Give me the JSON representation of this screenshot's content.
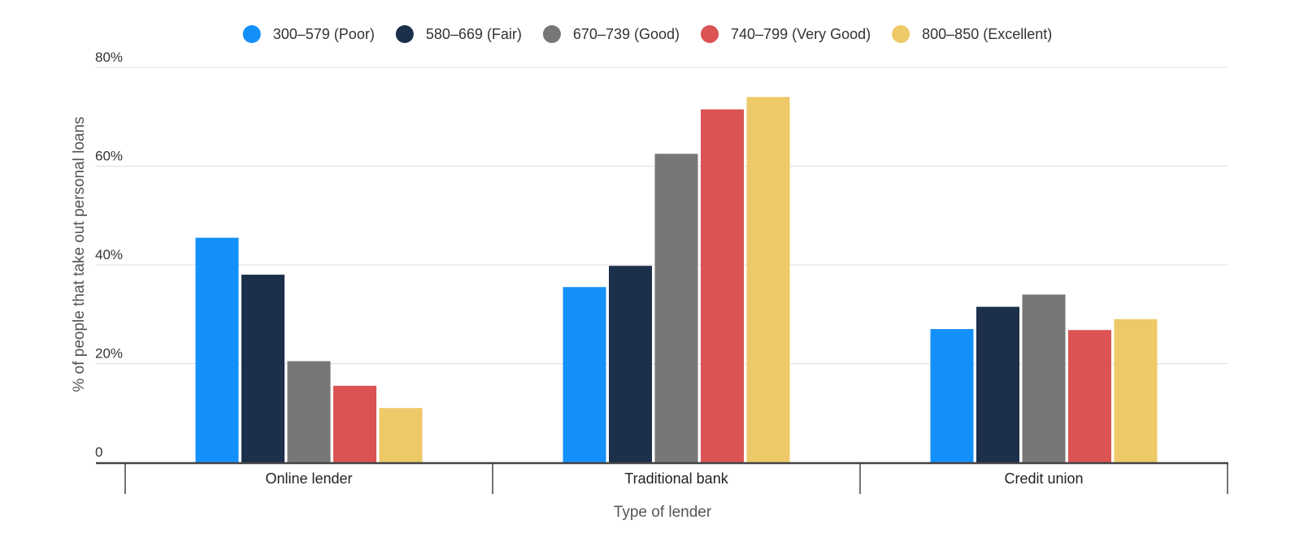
{
  "chart_data": {
    "type": "bar",
    "title": "",
    "xlabel": "Type of lender",
    "ylabel": "% of people that take out personal loans",
    "ylim": [
      0,
      80
    ],
    "yticks": [
      {
        "value": 0,
        "label": "0"
      },
      {
        "value": 20,
        "label": "20%"
      },
      {
        "value": 40,
        "label": "40%"
      },
      {
        "value": 60,
        "label": "60%"
      },
      {
        "value": 80,
        "label": "80%"
      }
    ],
    "grid": true,
    "legend_position": "top",
    "categories": [
      "Online lender",
      "Traditional bank",
      "Credit union"
    ],
    "series": [
      {
        "name": "300–579 (Poor)",
        "color": "#1490fa",
        "values": [
          45.5,
          35.5,
          27
        ]
      },
      {
        "name": "580–669 (Fair)",
        "color": "#1c2f4b",
        "values": [
          38,
          39.8,
          31.5
        ]
      },
      {
        "name": "670–739 (Good)",
        "color": "#777777",
        "values": [
          20.5,
          62.5,
          34
        ]
      },
      {
        "name": "740–799 (Very Good)",
        "color": "#db5353",
        "values": [
          15.5,
          71.5,
          26.8
        ]
      },
      {
        "name": "800–850 (Excellent)",
        "color": "#eec968",
        "values": [
          11,
          74,
          29
        ]
      }
    ]
  }
}
